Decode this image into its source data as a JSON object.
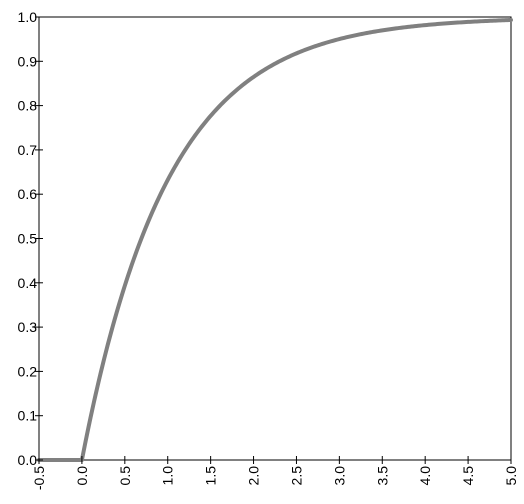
{
  "chart_data": {
    "type": "line",
    "x_ticks": [
      "-0.5",
      "0.0",
      "0.5",
      "1.0",
      "1.5",
      "2.0",
      "2.5",
      "3.0",
      "3.5",
      "4.0",
      "4.5",
      "5.0"
    ],
    "y_ticks": [
      "0.0",
      "0.1",
      "0.2",
      "0.3",
      "0.4",
      "0.5",
      "0.6",
      "0.7",
      "0.8",
      "0.9",
      "1.0"
    ],
    "xlim": [
      -0.5,
      5.0
    ],
    "ylim": [
      0.0,
      1.0
    ],
    "grid": false,
    "series": [
      {
        "color": "#808080",
        "x": [
          -0.5,
          0.0,
          0.25,
          0.5,
          0.75,
          1.0,
          1.25,
          1.5,
          1.75,
          2.0,
          2.5,
          3.0,
          3.5,
          4.0,
          4.5,
          5.0
        ],
        "y": [
          0.0,
          0.0,
          0.221,
          0.393,
          0.528,
          0.632,
          0.713,
          0.777,
          0.826,
          0.865,
          0.918,
          0.95,
          0.97,
          0.982,
          0.989,
          0.993
        ]
      }
    ]
  }
}
